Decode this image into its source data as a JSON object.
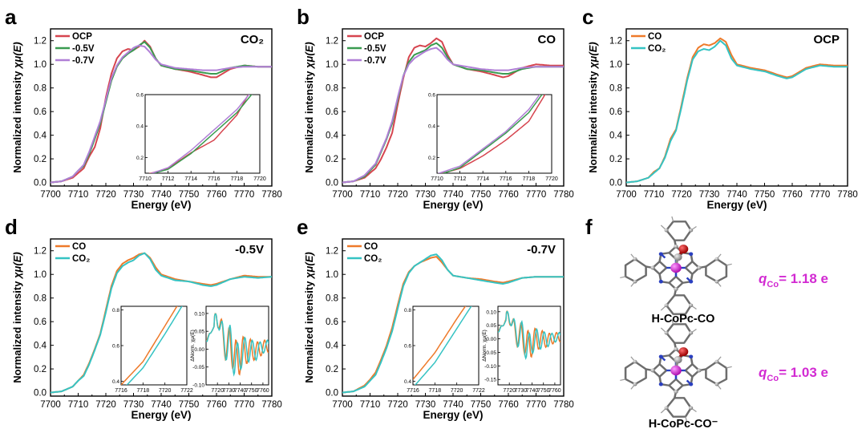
{
  "figure": {
    "ylabel_prefix": "Normalized intensity ",
    "ylabel_mu": "χμ(E)",
    "xlabel": "Energy (eV)",
    "inset_ylabel": "ΔNorm. χμ(E)"
  },
  "panels": {
    "a": {
      "letter": "a",
      "tag": "CO₂",
      "legend": [
        "OCP",
        "-0.5V",
        "-0.7V"
      ]
    },
    "b": {
      "letter": "b",
      "tag": "CO",
      "legend": [
        "OCP",
        "-0.5V",
        "-0.7V"
      ]
    },
    "c": {
      "letter": "c",
      "tag": "OCP",
      "legend": [
        "CO",
        "CO₂"
      ]
    },
    "d": {
      "letter": "d",
      "tag": "-0.5V",
      "legend": [
        "CO",
        "CO₂"
      ]
    },
    "e": {
      "letter": "e",
      "tag": "-0.7V",
      "legend": [
        "CO",
        "CO₂"
      ]
    },
    "f": {
      "letter": "f",
      "mol1": {
        "label": "H-CoPc-CO",
        "q_symbol": "q",
        "q_sub": "Co",
        "q_value": "= 1.18 e"
      },
      "mol2": {
        "label": "H-CoPc-CO⁻",
        "q_symbol": "q",
        "q_sub": "Co",
        "q_value": "= 1.03 e"
      }
    }
  },
  "colors": {
    "red": "#d6454f",
    "green": "#3a9b50",
    "purple": "#b07fd6",
    "orange": "#ee7a2a",
    "cyan": "#35c3c3",
    "magenta": "#d22ad2"
  },
  "chart_data": [
    {
      "id": "a",
      "type": "line",
      "title": "CO₂",
      "xlabel": "Energy (eV)",
      "ylabel": "Normalized intensity χμ(E)",
      "xlim": [
        7700,
        7780
      ],
      "ylim": [
        -0.03,
        1.3
      ],
      "xticks": [
        7700,
        7710,
        7720,
        7730,
        7740,
        7750,
        7760,
        7770,
        7780
      ],
      "yticks": [
        0.0,
        0.2,
        0.4,
        0.6,
        0.8,
        1.0,
        1.2
      ],
      "series": [
        {
          "name": "OCP",
          "color": "#d6454f",
          "x": [
            7700,
            7704,
            7708,
            7710,
            7712,
            7714,
            7716,
            7718,
            7720,
            7722,
            7724,
            7726,
            7728,
            7730,
            7732,
            7734,
            7736,
            7738,
            7740,
            7745,
            7750,
            7755,
            7758,
            7760,
            7765,
            7770,
            7775,
            7780
          ],
          "y": [
            0.0,
            0.01,
            0.04,
            0.08,
            0.12,
            0.22,
            0.3,
            0.46,
            0.72,
            0.92,
            1.05,
            1.11,
            1.13,
            1.12,
            1.15,
            1.2,
            1.15,
            1.05,
            0.99,
            0.96,
            0.94,
            0.91,
            0.89,
            0.89,
            0.96,
            0.99,
            0.98,
            0.98
          ]
        },
        {
          "name": "-0.5V",
          "color": "#3a9b50",
          "x": [
            7700,
            7704,
            7708,
            7710,
            7712,
            7714,
            7716,
            7718,
            7720,
            7722,
            7724,
            7726,
            7728,
            7730,
            7732,
            7734,
            7736,
            7738,
            7740,
            7745,
            7750,
            7755,
            7758,
            7760,
            7765,
            7770,
            7775,
            7780
          ],
          "y": [
            0.0,
            0.01,
            0.05,
            0.1,
            0.14,
            0.24,
            0.37,
            0.5,
            0.68,
            0.86,
            0.98,
            1.05,
            1.09,
            1.12,
            1.16,
            1.19,
            1.14,
            1.05,
            0.99,
            0.96,
            0.95,
            0.93,
            0.92,
            0.92,
            0.97,
            0.99,
            0.98,
            0.98
          ]
        },
        {
          "name": "-0.7V",
          "color": "#b07fd6",
          "x": [
            7700,
            7704,
            7708,
            7710,
            7712,
            7714,
            7716,
            7718,
            7720,
            7722,
            7724,
            7726,
            7728,
            7730,
            7732,
            7734,
            7736,
            7738,
            7740,
            7745,
            7750,
            7755,
            7758,
            7760,
            7765,
            7770,
            7775,
            7780
          ],
          "y": [
            0.0,
            0.01,
            0.05,
            0.1,
            0.15,
            0.26,
            0.39,
            0.52,
            0.7,
            0.88,
            0.99,
            1.06,
            1.1,
            1.14,
            1.16,
            1.15,
            1.1,
            1.04,
            1.0,
            0.97,
            0.96,
            0.95,
            0.95,
            0.95,
            0.97,
            0.98,
            0.98,
            0.98
          ]
        }
      ],
      "inset": {
        "xlim": [
          7710,
          7720
        ],
        "ylim": [
          0.1,
          0.6
        ],
        "xticks": [
          7710,
          7712,
          7714,
          7716,
          7718,
          7720
        ],
        "yticks": [
          0.2,
          0.4,
          0.6
        ]
      }
    },
    {
      "id": "b",
      "type": "line",
      "title": "CO",
      "xlabel": "Energy (eV)",
      "ylabel": "Normalized intensity χμ(E)",
      "xlim": [
        7700,
        7780
      ],
      "ylim": [
        -0.03,
        1.3
      ],
      "xticks": [
        7700,
        7710,
        7720,
        7730,
        7740,
        7750,
        7760,
        7770,
        7780
      ],
      "yticks": [
        0.0,
        0.2,
        0.4,
        0.6,
        0.8,
        1.0,
        1.2
      ],
      "series": [
        {
          "name": "OCP",
          "color": "#d6454f",
          "x": [
            7700,
            7704,
            7708,
            7710,
            7712,
            7714,
            7716,
            7718,
            7720,
            7722,
            7724,
            7726,
            7728,
            7730,
            7732,
            7734,
            7736,
            7738,
            7740,
            7745,
            7750,
            7755,
            7758,
            7760,
            7765,
            7770,
            7775,
            7780
          ],
          "y": [
            0.0,
            0.01,
            0.04,
            0.08,
            0.12,
            0.2,
            0.3,
            0.42,
            0.66,
            0.88,
            1.06,
            1.14,
            1.16,
            1.15,
            1.18,
            1.22,
            1.19,
            1.08,
            1.0,
            0.96,
            0.94,
            0.91,
            0.89,
            0.9,
            0.97,
            1.0,
            0.99,
            0.99
          ]
        },
        {
          "name": "-0.5V",
          "color": "#3a9b50",
          "x": [
            7700,
            7704,
            7708,
            7710,
            7712,
            7714,
            7716,
            7718,
            7720,
            7722,
            7724,
            7726,
            7728,
            7730,
            7732,
            7734,
            7736,
            7738,
            7740,
            7745,
            7750,
            7755,
            7758,
            7760,
            7765,
            7770,
            7775,
            7780
          ],
          "y": [
            0.0,
            0.01,
            0.05,
            0.1,
            0.15,
            0.26,
            0.37,
            0.5,
            0.7,
            0.9,
            1.02,
            1.08,
            1.1,
            1.12,
            1.16,
            1.18,
            1.14,
            1.06,
            1.0,
            0.96,
            0.95,
            0.93,
            0.92,
            0.92,
            0.96,
            0.98,
            0.98,
            0.98
          ]
        },
        {
          "name": "-0.7V",
          "color": "#b07fd6",
          "x": [
            7700,
            7704,
            7708,
            7710,
            7712,
            7714,
            7716,
            7718,
            7720,
            7722,
            7724,
            7726,
            7728,
            7730,
            7732,
            7734,
            7736,
            7738,
            7740,
            7745,
            7750,
            7755,
            7758,
            7760,
            7765,
            7770,
            7775,
            7780
          ],
          "y": [
            0.0,
            0.01,
            0.06,
            0.11,
            0.16,
            0.27,
            0.38,
            0.52,
            0.72,
            0.9,
            1.0,
            1.05,
            1.08,
            1.11,
            1.13,
            1.14,
            1.1,
            1.04,
            1.0,
            0.98,
            0.96,
            0.95,
            0.95,
            0.95,
            0.97,
            0.98,
            0.98,
            0.98
          ]
        }
      ],
      "inset": {
        "xlim": [
          7710,
          7720
        ],
        "ylim": [
          0.1,
          0.6
        ],
        "xticks": [
          7710,
          7712,
          7714,
          7716,
          7718,
          7720
        ],
        "yticks": [
          0.2,
          0.4,
          0.6
        ]
      }
    },
    {
      "id": "c",
      "type": "line",
      "title": "OCP",
      "xlabel": "Energy (eV)",
      "ylabel": "Normalized intensity χμ(E)",
      "xlim": [
        7700,
        7780
      ],
      "ylim": [
        -0.03,
        1.3
      ],
      "xticks": [
        7700,
        7710,
        7720,
        7730,
        7740,
        7750,
        7760,
        7770,
        7780
      ],
      "yticks": [
        0.0,
        0.2,
        0.4,
        0.6,
        0.8,
        1.0,
        1.2
      ],
      "series": [
        {
          "name": "CO",
          "color": "#ee7a2a",
          "x": [
            7700,
            7704,
            7708,
            7710,
            7712,
            7714,
            7716,
            7718,
            7720,
            7722,
            7724,
            7726,
            7728,
            7730,
            7732,
            7734,
            7736,
            7738,
            7740,
            7745,
            7750,
            7755,
            7758,
            7760,
            7765,
            7770,
            7775,
            7780
          ],
          "y": [
            0.0,
            0.01,
            0.04,
            0.09,
            0.12,
            0.22,
            0.37,
            0.45,
            0.66,
            0.88,
            1.06,
            1.14,
            1.17,
            1.16,
            1.18,
            1.22,
            1.19,
            1.08,
            1.0,
            0.97,
            0.95,
            0.91,
            0.89,
            0.9,
            0.97,
            1.0,
            0.99,
            0.99
          ]
        },
        {
          "name": "CO₂",
          "color": "#35c3c3",
          "x": [
            7700,
            7704,
            7708,
            7710,
            7712,
            7714,
            7716,
            7718,
            7720,
            7722,
            7724,
            7726,
            7728,
            7730,
            7732,
            7734,
            7736,
            7738,
            7740,
            7745,
            7750,
            7755,
            7758,
            7760,
            7765,
            7770,
            7775,
            7780
          ],
          "y": [
            0.0,
            0.01,
            0.04,
            0.08,
            0.12,
            0.21,
            0.35,
            0.44,
            0.64,
            0.86,
            1.04,
            1.11,
            1.13,
            1.12,
            1.15,
            1.2,
            1.16,
            1.05,
            0.99,
            0.96,
            0.94,
            0.9,
            0.88,
            0.89,
            0.96,
            0.99,
            0.98,
            0.98
          ]
        }
      ]
    },
    {
      "id": "d",
      "type": "line",
      "title": "-0.5V",
      "xlabel": "Energy (eV)",
      "ylabel": "Normalized intensity χμ(E)",
      "xlim": [
        7700,
        7780
      ],
      "ylim": [
        -0.03,
        1.3
      ],
      "xticks": [
        7700,
        7710,
        7720,
        7730,
        7740,
        7750,
        7760,
        7770,
        7780
      ],
      "yticks": [
        0.0,
        0.2,
        0.4,
        0.6,
        0.8,
        1.0,
        1.2
      ],
      "series": [
        {
          "name": "CO",
          "color": "#ee7a2a",
          "x": [
            7700,
            7704,
            7708,
            7710,
            7712,
            7714,
            7716,
            7718,
            7720,
            7722,
            7724,
            7726,
            7728,
            7730,
            7732,
            7734,
            7736,
            7738,
            7740,
            7745,
            7750,
            7755,
            7758,
            7760,
            7765,
            7770,
            7775,
            7780
          ],
          "y": [
            0.0,
            0.01,
            0.05,
            0.1,
            0.15,
            0.25,
            0.37,
            0.5,
            0.7,
            0.9,
            1.03,
            1.09,
            1.12,
            1.14,
            1.17,
            1.18,
            1.14,
            1.06,
            1.0,
            0.96,
            0.94,
            0.92,
            0.91,
            0.92,
            0.96,
            0.99,
            0.98,
            0.98
          ]
        },
        {
          "name": "CO₂",
          "color": "#35c3c3",
          "x": [
            7700,
            7704,
            7708,
            7710,
            7712,
            7714,
            7716,
            7718,
            7720,
            7722,
            7724,
            7726,
            7728,
            7730,
            7732,
            7734,
            7736,
            7738,
            7740,
            7745,
            7750,
            7755,
            7758,
            7760,
            7765,
            7770,
            7775,
            7780
          ],
          "y": [
            0.0,
            0.01,
            0.05,
            0.1,
            0.14,
            0.24,
            0.36,
            0.49,
            0.68,
            0.88,
            1.01,
            1.07,
            1.1,
            1.12,
            1.16,
            1.18,
            1.13,
            1.04,
            0.99,
            0.95,
            0.94,
            0.91,
            0.9,
            0.91,
            0.96,
            0.98,
            0.97,
            0.98
          ]
        }
      ],
      "insets": [
        {
          "xlim": [
            7716,
            7722
          ],
          "ylim": [
            0.38,
            0.82
          ],
          "xticks": [
            7716,
            7718,
            7720,
            7722
          ],
          "yticks": [
            0.4,
            0.6,
            0.8
          ]
        },
        {
          "xlim": [
            7710,
            7765
          ],
          "ylim": [
            -0.1,
            0.12
          ],
          "xticks": [
            7720,
            7730,
            7740,
            7750,
            7760
          ],
          "yticks": [
            -0.1,
            -0.05,
            0.0,
            0.05,
            0.1
          ]
        }
      ]
    },
    {
      "id": "e",
      "type": "line",
      "title": "-0.7V",
      "xlabel": "Energy (eV)",
      "ylabel": "Normalized intensity χμ(E)",
      "xlim": [
        7700,
        7780
      ],
      "ylim": [
        -0.03,
        1.3
      ],
      "xticks": [
        7700,
        7710,
        7720,
        7730,
        7740,
        7750,
        7760,
        7770,
        7780
      ],
      "yticks": [
        0.0,
        0.2,
        0.4,
        0.6,
        0.8,
        1.0,
        1.2
      ],
      "series": [
        {
          "name": "CO",
          "color": "#ee7a2a",
          "x": [
            7700,
            7704,
            7708,
            7710,
            7712,
            7714,
            7716,
            7718,
            7720,
            7722,
            7724,
            7726,
            7728,
            7730,
            7732,
            7734,
            7736,
            7738,
            7740,
            7745,
            7750,
            7755,
            7758,
            7760,
            7765,
            7770,
            7775,
            7780
          ],
          "y": [
            0.0,
            0.01,
            0.06,
            0.11,
            0.17,
            0.28,
            0.4,
            0.55,
            0.74,
            0.92,
            1.02,
            1.07,
            1.1,
            1.12,
            1.14,
            1.15,
            1.1,
            1.04,
            0.99,
            0.97,
            0.96,
            0.94,
            0.93,
            0.94,
            0.97,
            0.98,
            0.98,
            0.98
          ]
        },
        {
          "name": "CO₂",
          "color": "#35c3c3",
          "x": [
            7700,
            7704,
            7708,
            7710,
            7712,
            7714,
            7716,
            7718,
            7720,
            7722,
            7724,
            7726,
            7728,
            7730,
            7732,
            7734,
            7736,
            7738,
            7740,
            7745,
            7750,
            7755,
            7758,
            7760,
            7765,
            7770,
            7775,
            7780
          ],
          "y": [
            0.0,
            0.01,
            0.05,
            0.1,
            0.15,
            0.26,
            0.38,
            0.52,
            0.71,
            0.9,
            1.01,
            1.07,
            1.1,
            1.13,
            1.16,
            1.17,
            1.12,
            1.04,
            0.99,
            0.97,
            0.95,
            0.93,
            0.92,
            0.93,
            0.97,
            0.98,
            0.98,
            0.98
          ]
        }
      ],
      "insets": [
        {
          "xlim": [
            7716,
            7722
          ],
          "ylim": [
            0.38,
            0.82
          ],
          "xticks": [
            7716,
            7718,
            7720,
            7722
          ],
          "yticks": [
            0.4,
            0.6,
            0.8
          ]
        },
        {
          "xlim": [
            7710,
            7765
          ],
          "ylim": [
            -0.17,
            0.12
          ],
          "xticks": [
            7720,
            7730,
            7740,
            7750,
            7760
          ],
          "yticks": [
            -0.15,
            -0.1,
            -0.05,
            0.0,
            0.05,
            0.1
          ]
        }
      ]
    }
  ]
}
